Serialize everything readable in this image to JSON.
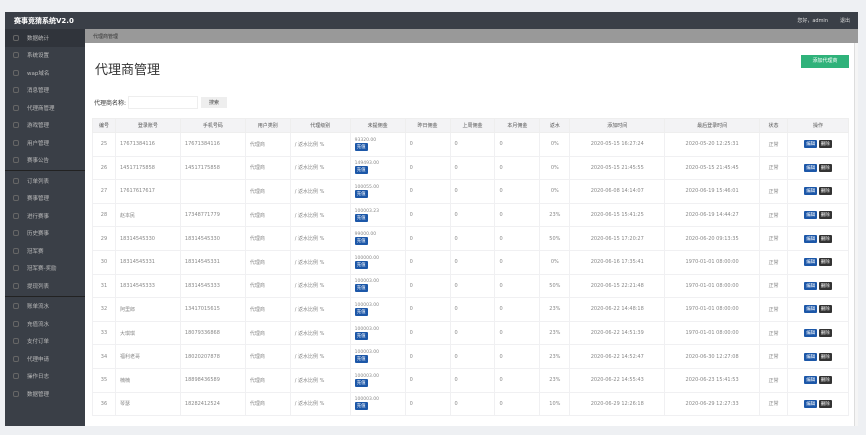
{
  "app": {
    "title": "赛事竞猜系统V2.0",
    "greeting": "您好，admin",
    "logout": "退出"
  },
  "sidebar": {
    "groups": [
      [
        "数据统计",
        "系统设置",
        "wap域名",
        "消息管理",
        "代理商管理",
        "游戏管理",
        "用户管理",
        "赛事公告"
      ],
      [
        "订单列表",
        "赛事管理",
        "进行赛事",
        "历史赛事",
        "冠军赛",
        "冠军赛-奖励",
        "提现列表"
      ],
      [
        "账单流水",
        "充值流水",
        "支付订单",
        "代理申请",
        "操作日志",
        "数据管理"
      ]
    ],
    "active": "代理商管理"
  },
  "breadcrumb": "代理商管理",
  "page": {
    "title": "代理商管理",
    "add_button": "添加代理商",
    "search_label": "代理商名称:",
    "search_value": "",
    "search_button": "搜索"
  },
  "table": {
    "headers": [
      "编号",
      "登录账号",
      "手机号码",
      "用户类别",
      "代理级别",
      "未提佣金",
      "昨日佣金",
      "上周佣金",
      "本月佣金",
      "返水",
      "添加时间",
      "最后登录时间",
      "状态",
      "操作"
    ],
    "recharge_label": "充值",
    "edit_label": "编辑",
    "delete_label": "删除",
    "rows": [
      [
        "25",
        "17671384116",
        "17671384116",
        "代理商",
        "/ 返水比例 %",
        "93320.00",
        "0",
        "0",
        "0",
        "0%",
        "2020-05-15 16:27:24",
        "2020-05-20 12:25:31",
        "正常"
      ],
      [
        "26",
        "14517175858",
        "14517175858",
        "代理商",
        "/ 返水比例 %",
        "149493.00",
        "0",
        "0",
        "0",
        "0%",
        "2020-05-15 21:45:55",
        "2020-05-15 21:45:45",
        "正常"
      ],
      [
        "27",
        "17617617617",
        "",
        "代理商",
        "/ 返水比例 %",
        "100055.00",
        "0",
        "0",
        "0",
        "0%",
        "2020-06-08 14:14:07",
        "2020-06-19 15:46:01",
        "正常"
      ],
      [
        "28",
        "赵本民",
        "17348771779",
        "代理商",
        "/ 返水比例 %",
        "100003.23",
        "0",
        "0",
        "0",
        "23%",
        "2020-06-15 15:41:25",
        "2020-06-19 14:44:27",
        "正常"
      ],
      [
        "29",
        "18314545330",
        "18314545330",
        "代理商",
        "/ 返水比例 %",
        "99000.00",
        "0",
        "0",
        "0",
        "50%",
        "2020-06-15 17:20:27",
        "2020-06-20 09:13:35",
        "正常"
      ],
      [
        "30",
        "18314545331",
        "18314545331",
        "代理商",
        "/ 返水比例 %",
        "100000.00",
        "0",
        "0",
        "0",
        "0%",
        "2020-06-16 17:35:41",
        "1970-01-01 08:00:00",
        "正常"
      ],
      [
        "31",
        "18314545333",
        "18314545333",
        "代理商",
        "/ 返水比例 %",
        "100003.00",
        "0",
        "0",
        "0",
        "50%",
        "2020-06-15 22:21:48",
        "1970-01-01 08:00:00",
        "正常"
      ],
      [
        "32",
        "阿里郎",
        "13417015615",
        "代理商",
        "/ 返水比例 %",
        "100003.00",
        "0",
        "0",
        "0",
        "23%",
        "2020-06-22 14:48:18",
        "1970-01-01 08:00:00",
        "正常"
      ],
      [
        "33",
        "大琪琪",
        "18079336868",
        "代理商",
        "/ 返水比例 %",
        "100003.00",
        "0",
        "0",
        "0",
        "23%",
        "2020-06-22 14:51:39",
        "1970-01-01 08:00:00",
        "正常"
      ],
      [
        "34",
        "福利老哥",
        "18020207878",
        "代理商",
        "/ 返水比例 %",
        "100003.00",
        "0",
        "0",
        "0",
        "23%",
        "2020-06-22 14:52:47",
        "2020-06-30 12:27:08",
        "正常"
      ],
      [
        "35",
        "楠楠",
        "18898436589",
        "代理商",
        "/ 返水比例 %",
        "100003.00",
        "0",
        "0",
        "0",
        "23%",
        "2020-06-22 14:55:43",
        "2020-06-23 15:41:53",
        "正常"
      ],
      [
        "36",
        "琴瑟",
        "18282412524",
        "代理商",
        "/ 返水比例 %",
        "100003.00",
        "0",
        "0",
        "0",
        "10%",
        "2020-06-29 12:26:18",
        "2020-06-29 12:27:33",
        "正常"
      ]
    ]
  },
  "colors": {
    "sidebar": "#3a3f47",
    "accent": "#1c57a8",
    "add": "#2fb27a"
  }
}
